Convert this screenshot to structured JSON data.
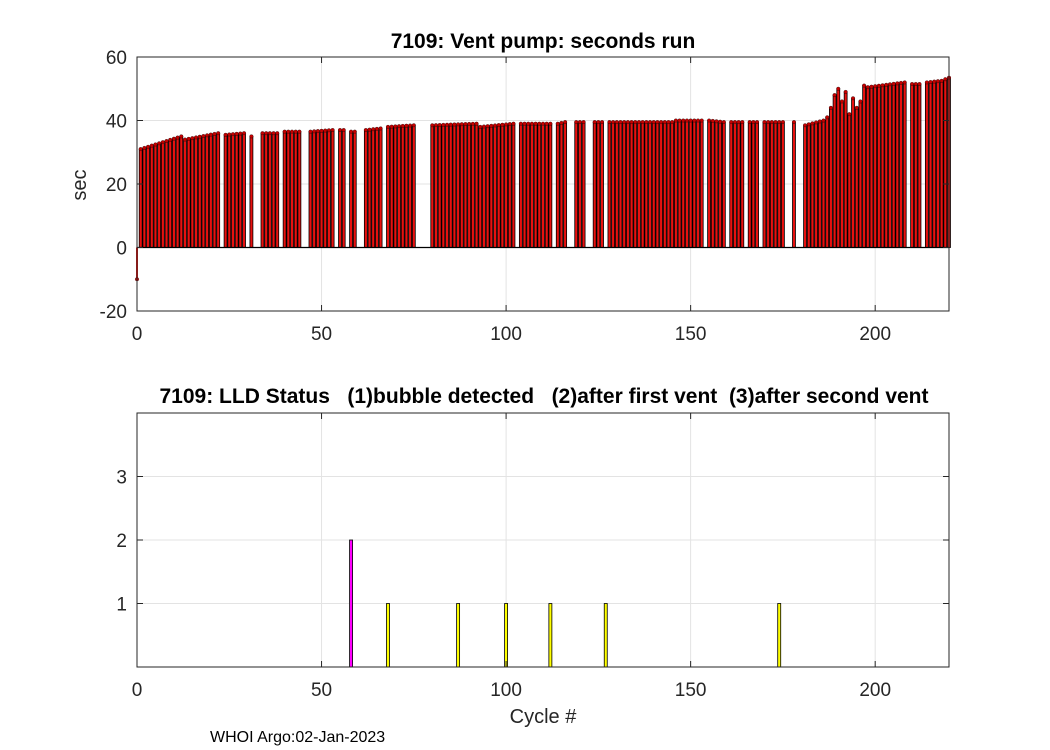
{
  "footer": "WHOI Argo:02-Jan-2023",
  "chart_data": [
    {
      "type": "bar",
      "title": "7109: Vent pump: seconds run",
      "xlabel": "",
      "ylabel": "sec",
      "xlim": [
        0,
        220
      ],
      "ylim": [
        -20,
        60
      ],
      "xticks": [
        0,
        50,
        100,
        150,
        200
      ],
      "yticks": [
        -20,
        0,
        20,
        40,
        60
      ],
      "grid": true,
      "bar_color": "#e8110f",
      "edge_color": "#000000",
      "marker_color": "#c40000",
      "segments": [
        {
          "x_start": 0,
          "x_end": 0,
          "y_start": -10,
          "y_end": -10
        },
        {
          "x_start": 1,
          "x_end": 12,
          "y_start": 31,
          "y_end": 35
        },
        {
          "x_start": 13,
          "x_end": 22,
          "y_start": 34,
          "y_end": 36
        },
        {
          "x_start": 24,
          "x_end": 29,
          "y_start": 35.5,
          "y_end": 36
        },
        {
          "x_start": 31,
          "x_end": 31,
          "y_start": 35,
          "y_end": 35
        },
        {
          "x_start": 34,
          "x_end": 38,
          "y_start": 36,
          "y_end": 36
        },
        {
          "x_start": 40,
          "x_end": 44,
          "y_start": 36.5,
          "y_end": 36.5
        },
        {
          "x_start": 47,
          "x_end": 53,
          "y_start": 36.5,
          "y_end": 37
        },
        {
          "x_start": 55,
          "x_end": 56,
          "y_start": 37,
          "y_end": 37
        },
        {
          "x_start": 58,
          "x_end": 59,
          "y_start": 36.5,
          "y_end": 36.5
        },
        {
          "x_start": 62,
          "x_end": 66,
          "y_start": 37,
          "y_end": 37.5
        },
        {
          "x_start": 68,
          "x_end": 75,
          "y_start": 38,
          "y_end": 38.5
        },
        {
          "x_start": 80,
          "x_end": 92,
          "y_start": 38.5,
          "y_end": 39
        },
        {
          "x_start": 93,
          "x_end": 102,
          "y_start": 38,
          "y_end": 39
        },
        {
          "x_start": 104,
          "x_end": 110,
          "y_start": 39,
          "y_end": 39
        },
        {
          "x_start": 111,
          "x_end": 112,
          "y_start": 39,
          "y_end": 39
        },
        {
          "x_start": 114,
          "x_end": 116,
          "y_start": 39,
          "y_end": 39.5
        },
        {
          "x_start": 119,
          "x_end": 121,
          "y_start": 39.5,
          "y_end": 39.5
        },
        {
          "x_start": 124,
          "x_end": 126,
          "y_start": 39.5,
          "y_end": 39.5
        },
        {
          "x_start": 128,
          "x_end": 133,
          "y_start": 39.5,
          "y_end": 39.5
        },
        {
          "x_start": 134,
          "x_end": 145,
          "y_start": 39.5,
          "y_end": 39.5
        },
        {
          "x_start": 146,
          "x_end": 153,
          "y_start": 40,
          "y_end": 40
        },
        {
          "x_start": 155,
          "x_end": 159,
          "y_start": 40,
          "y_end": 39.5
        },
        {
          "x_start": 161,
          "x_end": 164,
          "y_start": 39.5,
          "y_end": 39.5
        },
        {
          "x_start": 166,
          "x_end": 168,
          "y_start": 39.5,
          "y_end": 39.5
        },
        {
          "x_start": 170,
          "x_end": 175,
          "y_start": 39.5,
          "y_end": 39.5
        },
        {
          "x_start": 178,
          "x_end": 178,
          "y_start": 39.5,
          "y_end": 39.5
        },
        {
          "x_start": 181,
          "x_end": 186,
          "y_start": 38.5,
          "y_end": 40
        },
        {
          "x_start": 198,
          "x_end": 208,
          "y_start": 50.5,
          "y_end": 52
        },
        {
          "x_start": 210,
          "x_end": 212,
          "y_start": 51.5,
          "y_end": 51.5
        },
        {
          "x_start": 214,
          "x_end": 218,
          "y_start": 52,
          "y_end": 52.5
        },
        {
          "x_start": 219,
          "x_end": 220,
          "y_start": 53,
          "y_end": 53.5
        }
      ],
      "points": [
        {
          "x": 187,
          "y": 41
        },
        {
          "x": 188,
          "y": 44
        },
        {
          "x": 189,
          "y": 48
        },
        {
          "x": 190,
          "y": 50
        },
        {
          "x": 191,
          "y": 46
        },
        {
          "x": 192,
          "y": 49
        },
        {
          "x": 193,
          "y": 42
        },
        {
          "x": 194,
          "y": 47
        },
        {
          "x": 195,
          "y": 44
        },
        {
          "x": 196,
          "y": 46
        },
        {
          "x": 197,
          "y": 51
        }
      ]
    },
    {
      "type": "bar",
      "title": "7109: LLD Status   (1)bubble detected   (2)after first vent  (3)after second vent",
      "xlabel": "Cycle #",
      "ylabel": "",
      "xlim": [
        0,
        220
      ],
      "ylim": [
        0,
        4
      ],
      "xticks": [
        0,
        50,
        100,
        150,
        200
      ],
      "yticks": [
        1,
        2,
        3
      ],
      "grid": true,
      "bars": [
        {
          "x": 58,
          "value": 2,
          "color": "#ff00ff"
        },
        {
          "x": 68,
          "value": 1,
          "color": "#ffff00"
        },
        {
          "x": 87,
          "value": 1,
          "color": "#ffff00"
        },
        {
          "x": 100,
          "value": 1,
          "color": "#ffff00"
        },
        {
          "x": 112,
          "value": 1,
          "color": "#ffff00"
        },
        {
          "x": 127,
          "value": 1,
          "color": "#ffff00"
        },
        {
          "x": 174,
          "value": 1,
          "color": "#ffff00"
        }
      ]
    }
  ]
}
